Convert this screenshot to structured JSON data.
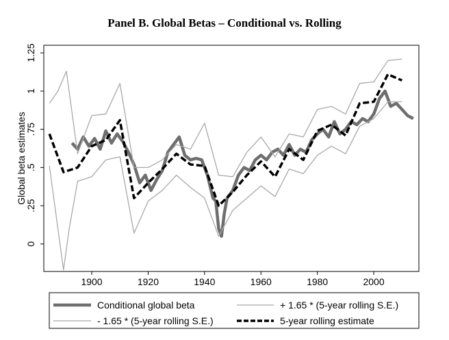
{
  "chart_data": {
    "type": "line",
    "title": "Panel B. Global Betas – Conditional vs. Rolling",
    "xlabel": "",
    "ylabel": "Global beta estimates",
    "xlim": [
      1883,
      2016
    ],
    "ylim": [
      -0.18,
      1.3
    ],
    "x_ticks": [
      {
        "value": 1900,
        "label": "1900"
      },
      {
        "value": 1920,
        "label": "1920"
      },
      {
        "value": 1940,
        "label": "1940"
      },
      {
        "value": 1960,
        "label": "1960"
      },
      {
        "value": 1980,
        "label": "1980"
      },
      {
        "value": 2000,
        "label": "2000"
      }
    ],
    "y_ticks": [
      {
        "value": 0,
        "label": "0"
      },
      {
        "value": 0.25,
        "label": ".25"
      },
      {
        "value": 0.5,
        "label": ".5"
      },
      {
        "value": 0.75,
        "label": ".75"
      },
      {
        "value": 1,
        "label": "1"
      },
      {
        "value": 1.25,
        "label": "1.25"
      }
    ],
    "grid": false,
    "legend_position": "bottom",
    "series": [
      {
        "name": "Conditional global beta",
        "color": "#6e6e6e",
        "style": "thick",
        "x": [
          1893,
          1895,
          1897,
          1899,
          1901,
          1903,
          1905,
          1907,
          1909,
          1911,
          1913,
          1915,
          1917,
          1919,
          1921,
          1923,
          1925,
          1927,
          1929,
          1931,
          1933,
          1935,
          1937,
          1939,
          1941,
          1943,
          1944,
          1945,
          1946,
          1947,
          1948,
          1950,
          1952,
          1954,
          1956,
          1958,
          1960,
          1962,
          1964,
          1966,
          1968,
          1970,
          1972,
          1974,
          1976,
          1978,
          1980,
          1982,
          1984,
          1986,
          1988,
          1990,
          1992,
          1994,
          1996,
          1998,
          2000,
          2002,
          2004,
          2006,
          2008,
          2010,
          2012,
          2014
        ],
        "y": [
          0.66,
          0.62,
          0.7,
          0.64,
          0.69,
          0.62,
          0.74,
          0.66,
          0.72,
          0.67,
          0.6,
          0.52,
          0.4,
          0.45,
          0.35,
          0.42,
          0.48,
          0.6,
          0.65,
          0.7,
          0.58,
          0.55,
          0.56,
          0.55,
          0.45,
          0.3,
          0.28,
          0.1,
          0.05,
          0.2,
          0.3,
          0.35,
          0.45,
          0.5,
          0.48,
          0.55,
          0.58,
          0.55,
          0.6,
          0.62,
          0.58,
          0.65,
          0.58,
          0.62,
          0.6,
          0.68,
          0.72,
          0.75,
          0.7,
          0.8,
          0.72,
          0.75,
          0.8,
          0.78,
          0.82,
          0.8,
          0.85,
          0.95,
          1.0,
          0.9,
          0.92,
          0.88,
          0.84,
          0.82
        ]
      },
      {
        "name": "+ 1.65 * (5-year rolling S.E.)",
        "color": "#a8a8a8",
        "style": "thin",
        "x": [
          1885,
          1888,
          1891,
          1895,
          1900,
          1905,
          1910,
          1915,
          1920,
          1925,
          1930,
          1935,
          1940,
          1945,
          1950,
          1955,
          1960,
          1965,
          1970,
          1975,
          1980,
          1985,
          1990,
          1995,
          2000,
          2005,
          2010
        ],
        "y": [
          0.92,
          1.0,
          1.13,
          0.59,
          0.84,
          0.85,
          1.05,
          0.5,
          0.5,
          0.55,
          0.65,
          0.62,
          0.79,
          0.45,
          0.44,
          0.6,
          0.7,
          0.57,
          0.72,
          0.7,
          0.88,
          0.9,
          0.85,
          1.05,
          1.06,
          1.2,
          1.21
        ]
      },
      {
        "name": "- 1.65 * (5-year rolling S.E.)",
        "color": "#a8a8a8",
        "style": "thin",
        "x": [
          1885,
          1888,
          1890,
          1892,
          1895,
          1900,
          1905,
          1910,
          1915,
          1920,
          1925,
          1930,
          1935,
          1940,
          1945,
          1950,
          1955,
          1960,
          1965,
          1970,
          1975,
          1980,
          1985,
          1990,
          1995,
          2000,
          2005,
          2010
        ],
        "y": [
          0.51,
          0.1,
          -0.17,
          0.1,
          0.41,
          0.44,
          0.55,
          0.57,
          0.07,
          0.28,
          0.35,
          0.45,
          0.37,
          0.3,
          0.05,
          0.22,
          0.3,
          0.38,
          0.31,
          0.49,
          0.46,
          0.58,
          0.64,
          0.59,
          0.77,
          0.82,
          0.93,
          0.93
        ]
      },
      {
        "name": "5-year rolling estimate",
        "color": "#000000",
        "style": "dashed",
        "x": [
          1885,
          1890,
          1895,
          1900,
          1905,
          1910,
          1915,
          1920,
          1925,
          1930,
          1935,
          1940,
          1945,
          1950,
          1955,
          1960,
          1965,
          1970,
          1975,
          1980,
          1985,
          1990,
          1995,
          2000,
          2005,
          2010
        ],
        "y": [
          0.72,
          0.47,
          0.5,
          0.64,
          0.68,
          0.81,
          0.3,
          0.4,
          0.49,
          0.59,
          0.52,
          0.51,
          0.25,
          0.34,
          0.45,
          0.54,
          0.44,
          0.62,
          0.55,
          0.74,
          0.78,
          0.71,
          0.92,
          0.93,
          1.11,
          1.07
        ]
      }
    ]
  }
}
